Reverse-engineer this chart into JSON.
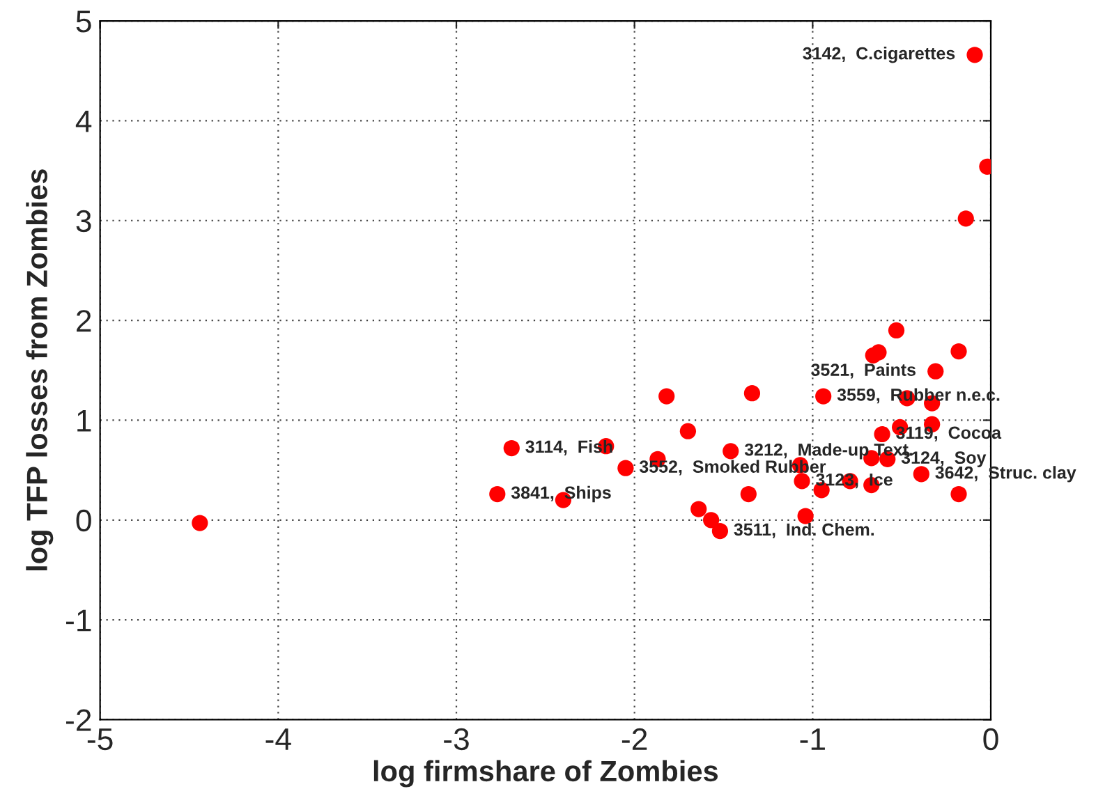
{
  "chart_data": {
    "type": "scatter",
    "xlabel": "log firmshare of Zombies",
    "ylabel": "log TFP losses from Zombies",
    "x": [
      -4.44,
      -2.77,
      -2.69,
      -2.4,
      -2.16,
      -2.05,
      -1.87,
      -1.82,
      -1.7,
      -1.64,
      -1.57,
      -1.52,
      -1.46,
      -1.36,
      -1.34,
      -1.07,
      -1.06,
      -1.04,
      -0.95,
      -0.94,
      -0.79,
      -0.67,
      -0.67,
      -0.66,
      -0.63,
      -0.61,
      -0.58,
      -0.53,
      -0.51,
      -0.47,
      -0.39,
      -0.33,
      -0.33,
      -0.31,
      -0.18,
      -0.18,
      -0.14,
      -0.09,
      -0.02
    ],
    "series": [
      {
        "color": "#ff0000",
        "values": [
          -0.03,
          0.26,
          0.72,
          0.2,
          0.74,
          0.52,
          0.61,
          1.24,
          0.89,
          0.11,
          0.0,
          -0.11,
          0.69,
          0.26,
          1.27,
          0.55,
          0.39,
          0.04,
          0.3,
          1.24,
          0.39,
          0.62,
          0.35,
          1.65,
          1.68,
          0.86,
          0.61,
          1.9,
          0.93,
          1.22,
          0.46,
          1.17,
          0.96,
          1.49,
          0.26,
          1.69,
          3.02,
          4.66,
          3.54
        ]
      }
    ],
    "marker": "circle",
    "xlim": [
      -5,
      0
    ],
    "ylim": [
      -2,
      5
    ],
    "xticks": [
      -5,
      -4,
      -3,
      -2,
      -1,
      0
    ],
    "yticks": [
      -2,
      -1,
      0,
      1,
      2,
      3,
      4,
      5
    ],
    "grid": true,
    "annotations": [
      {
        "text": "3142,  C.cigarettes",
        "x": -0.09,
        "y": 4.66
      },
      {
        "text": "3521,  Paints",
        "x": -0.31,
        "y": 1.49
      },
      {
        "text": "3559,  Rubber n.e.c.",
        "x": -0.94,
        "y": 1.24
      },
      {
        "text": "3119,  Cocoa",
        "x": -0.61,
        "y": 0.86
      },
      {
        "text": "3114,  Fish",
        "x": -2.69,
        "y": 0.72
      },
      {
        "text": "3212,  Made-up Text.",
        "x": -1.46,
        "y": 0.69
      },
      {
        "text": "3124,  Soy",
        "x": -0.58,
        "y": 0.61
      },
      {
        "text": "3552,  Smoked Rubber",
        "x": -2.05,
        "y": 0.52
      },
      {
        "text": "3642,  Struc. clay",
        "x": -0.39,
        "y": 0.46
      },
      {
        "text": "3123,  Ice",
        "x": -1.06,
        "y": 0.39
      },
      {
        "text": "3841,  Ships",
        "x": -2.77,
        "y": 0.26
      },
      {
        "text": "3511,  Ind. Chem.",
        "x": -1.52,
        "y": -0.11
      }
    ]
  }
}
